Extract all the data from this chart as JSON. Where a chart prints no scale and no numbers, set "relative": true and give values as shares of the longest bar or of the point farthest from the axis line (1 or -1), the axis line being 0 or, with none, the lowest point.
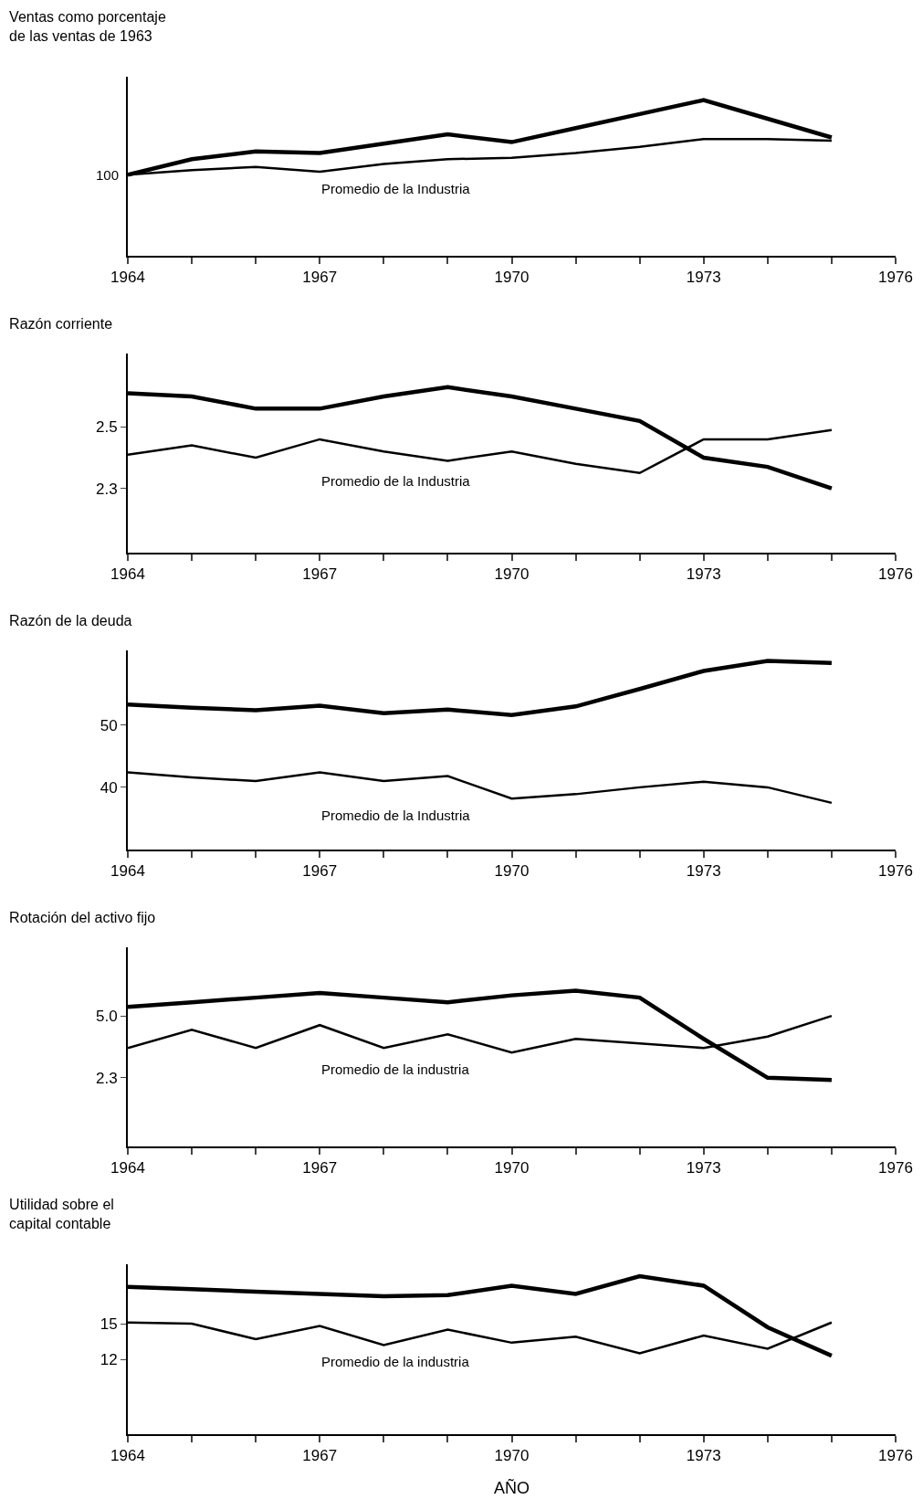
{
  "chart_data": [
    {
      "type": "line",
      "title": "Ventas como porcentaje\nde las ventas de 1963",
      "relative": true,
      "x": [
        1964,
        1965,
        1966,
        1967,
        1968,
        1969,
        1970,
        1971,
        1972,
        1973,
        1974,
        1975
      ],
      "xlim": [
        1964,
        1976
      ],
      "xticks": [
        1964,
        {
          "value": 1965,
          "label": null
        },
        {
          "value": 1966,
          "label": null
        },
        1967,
        {
          "value": 1968,
          "label": null
        },
        {
          "value": 1969,
          "label": null
        },
        1970,
        {
          "value": 1971,
          "label": null
        },
        {
          "value": 1972,
          "label": null
        },
        1973,
        {
          "value": 1974,
          "label": null
        },
        {
          "value": 1975,
          "label": null
        },
        1976
      ],
      "grid": false,
      "legend": false,
      "marker": "none",
      "line_style": "solid",
      "annotations": [
        {
          "text": "100",
          "x": 1964,
          "y": 0.52
        }
      ],
      "series": [
        {
          "color": "#000000",
          "values": [
            0.52,
            0.62,
            0.67,
            0.66,
            0.72,
            0.78,
            0.73,
            0.82,
            0.91,
            1,
            0.88,
            0.76
          ]
        },
        {
          "name": "Promedio de la Industria",
          "color": "#000000",
          "values": [
            0.52,
            0.55,
            0.57,
            0.54,
            0.59,
            0.62,
            0.63,
            0.66,
            0.7,
            0.75,
            0.75,
            0.74
          ]
        }
      ]
    },
    {
      "type": "line",
      "title": "Razón corriente",
      "x": [
        1964,
        1965,
        1966,
        1967,
        1968,
        1969,
        1970,
        1971,
        1972,
        1973,
        1974,
        1975
      ],
      "xlim": [
        1964,
        1976
      ],
      "xticks": [
        1964,
        {
          "value": 1965,
          "label": null
        },
        {
          "value": 1966,
          "label": null
        },
        1967,
        {
          "value": 1968,
          "label": null
        },
        {
          "value": 1969,
          "label": null
        },
        1970,
        {
          "value": 1971,
          "label": null
        },
        {
          "value": 1972,
          "label": null
        },
        1973,
        {
          "value": 1974,
          "label": null
        },
        {
          "value": 1975,
          "label": null
        },
        1976
      ],
      "ylim": [
        2.09,
        2.74
      ],
      "yticks": [
        2.3,
        2.5
      ],
      "grid": false,
      "legend": false,
      "marker": "none",
      "line_style": "solid",
      "series": [
        {
          "color": "#000000",
          "values": [
            2.61,
            2.6,
            2.56,
            2.56,
            2.6,
            2.63,
            2.6,
            2.56,
            2.52,
            2.4,
            2.37,
            2.3
          ]
        },
        {
          "name": "Promedio de la Industria",
          "color": "#000000",
          "values": [
            2.41,
            2.44,
            2.4,
            2.46,
            2.42,
            2.39,
            2.42,
            2.38,
            2.35,
            2.46,
            2.46,
            2.49
          ]
        }
      ]
    },
    {
      "type": "line",
      "title": "Razón de la deuda",
      "x": [
        1964,
        1965,
        1966,
        1967,
        1968,
        1969,
        1970,
        1971,
        1972,
        1973,
        1974,
        1975
      ],
      "xlim": [
        1964,
        1976
      ],
      "xticks": [
        1964,
        {
          "value": 1965,
          "label": null
        },
        {
          "value": 1966,
          "label": null
        },
        1967,
        {
          "value": 1968,
          "label": null
        },
        {
          "value": 1969,
          "label": null
        },
        1970,
        {
          "value": 1971,
          "label": null
        },
        {
          "value": 1972,
          "label": null
        },
        1973,
        {
          "value": 1974,
          "label": null
        },
        {
          "value": 1975,
          "label": null
        },
        1976
      ],
      "ylim": [
        30,
        62
      ],
      "yticks": [
        40,
        50
      ],
      "grid": false,
      "legend": false,
      "marker": "none",
      "line_style": "solid",
      "series": [
        {
          "color": "#000000",
          "values": [
            53.3,
            52.8,
            52.4,
            53.1,
            51.9,
            52.5,
            51.6,
            53,
            55.8,
            58.7,
            60.3,
            60
          ]
        },
        {
          "name": "Promedio de la Industria",
          "color": "#000000",
          "values": [
            42.4,
            41.6,
            41,
            42.4,
            41,
            41.8,
            38.2,
            38.9,
            40,
            40.9,
            40,
            37.5
          ]
        }
      ]
    },
    {
      "type": "line",
      "title": "Rotación del activo fijo",
      "x": [
        1964,
        1965,
        1966,
        1967,
        1968,
        1969,
        1970,
        1971,
        1972,
        1973,
        1974,
        1975
      ],
      "xlim": [
        1964,
        1976
      ],
      "xticks": [
        1964,
        {
          "value": 1965,
          "label": null
        },
        {
          "value": 1966,
          "label": null
        },
        1967,
        {
          "value": 1968,
          "label": null
        },
        {
          "value": 1969,
          "label": null
        },
        1970,
        {
          "value": 1971,
          "label": null
        },
        {
          "value": 1972,
          "label": null
        },
        1973,
        {
          "value": 1974,
          "label": null
        },
        {
          "value": 1975,
          "label": null
        },
        1976
      ],
      "ylim": [
        -0.7,
        8
      ],
      "yticks": [
        {
          "value": 2.3,
          "label": "2.3"
        },
        {
          "value": 5,
          "label": "5.0"
        }
      ],
      "grid": false,
      "legend": false,
      "marker": "none",
      "line_style": "solid",
      "series": [
        {
          "color": "#000000",
          "values": [
            5.4,
            5.6,
            5.8,
            6,
            5.8,
            5.6,
            5.9,
            6.1,
            5.8,
            4,
            2.3,
            2.2
          ]
        },
        {
          "name": "Promedio de la industria",
          "color": "#000000",
          "values": [
            3.6,
            4.4,
            3.6,
            4.6,
            3.6,
            4.2,
            3.4,
            4,
            3.8,
            3.6,
            4.1,
            5
          ]
        }
      ]
    },
    {
      "type": "line",
      "title": "Utilidad sobre el\ncapital contable",
      "xlabel": "AÑO",
      "x": [
        1964,
        1965,
        1966,
        1967,
        1968,
        1969,
        1970,
        1971,
        1972,
        1973,
        1974,
        1975
      ],
      "xlim": [
        1964,
        1976
      ],
      "xticks": [
        1964,
        {
          "value": 1965,
          "label": null
        },
        {
          "value": 1966,
          "label": null
        },
        1967,
        {
          "value": 1968,
          "label": null
        },
        {
          "value": 1969,
          "label": null
        },
        1970,
        {
          "value": 1971,
          "label": null
        },
        {
          "value": 1972,
          "label": null
        },
        1973,
        {
          "value": 1974,
          "label": null
        },
        {
          "value": 1975,
          "label": null
        },
        1976
      ],
      "ylim": [
        5.7,
        20
      ],
      "yticks": [
        12,
        15
      ],
      "grid": false,
      "legend": false,
      "marker": "none",
      "line_style": "solid",
      "series": [
        {
          "color": "#000000",
          "values": [
            18.1,
            17.9,
            17.7,
            17.5,
            17.3,
            17.4,
            18.2,
            17.5,
            19,
            18.2,
            14.7,
            12.3
          ]
        },
        {
          "name": "Promedio de la industria",
          "color": "#000000",
          "values": [
            15.1,
            15,
            13.7,
            14.8,
            13.2,
            14.5,
            13.4,
            13.9,
            12.5,
            14,
            12.9,
            15.1
          ]
        }
      ]
    }
  ]
}
